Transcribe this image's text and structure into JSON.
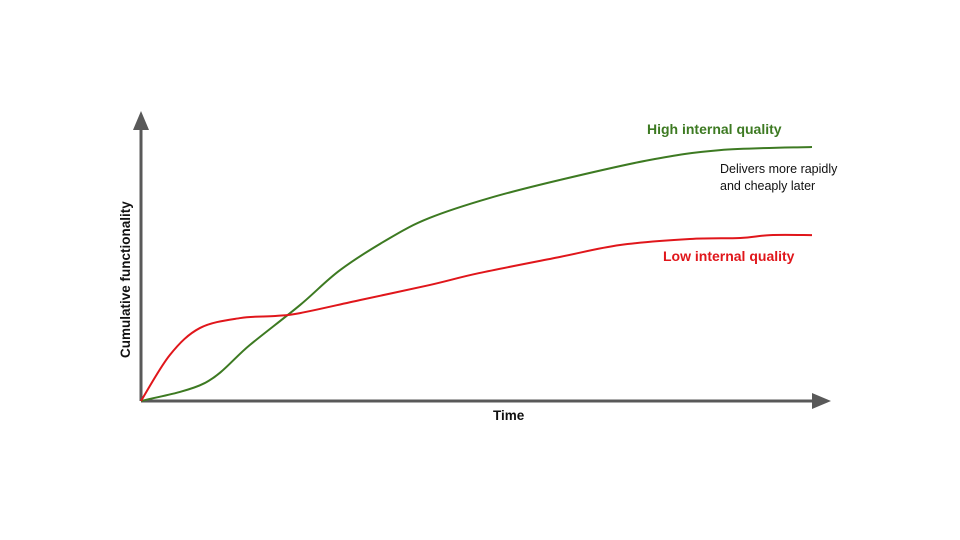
{
  "chart_data": {
    "type": "line",
    "title": "",
    "xlabel": "Time",
    "ylabel": "Cumulative functionality",
    "xlim": [
      0,
      100
    ],
    "ylim": [
      0,
      100
    ],
    "grid": false,
    "axis_color": "#595959",
    "series": [
      {
        "name": "High internal quality",
        "color": "#3d7a22",
        "points": [
          [
            0,
            0
          ],
          [
            9.5,
            6.9
          ],
          [
            16.2,
            21.5
          ],
          [
            23.7,
            36.9
          ],
          [
            29.7,
            50.4
          ],
          [
            37.1,
            62.7
          ],
          [
            43,
            70.4
          ],
          [
            52,
            78.1
          ],
          [
            62.4,
            85
          ],
          [
            75.8,
            92.7
          ],
          [
            86.3,
            96.5
          ],
          [
            100,
            97.7
          ]
        ]
      },
      {
        "name": "Low internal quality",
        "color": "#e0161b",
        "points": [
          [
            0,
            0
          ],
          [
            4.3,
            17.7
          ],
          [
            8.8,
            28.1
          ],
          [
            14.8,
            31.9
          ],
          [
            20,
            32.7
          ],
          [
            23.7,
            33.8
          ],
          [
            32.6,
            38.8
          ],
          [
            43,
            44.6
          ],
          [
            50.4,
            49.2
          ],
          [
            62.4,
            55.4
          ],
          [
            71.4,
            60
          ],
          [
            81.8,
            62.3
          ],
          [
            89.3,
            62.7
          ],
          [
            93.8,
            63.8
          ],
          [
            100,
            63.8
          ]
        ]
      }
    ],
    "annotations": [
      "Delivers more rapidly",
      "and cheaply later"
    ]
  }
}
